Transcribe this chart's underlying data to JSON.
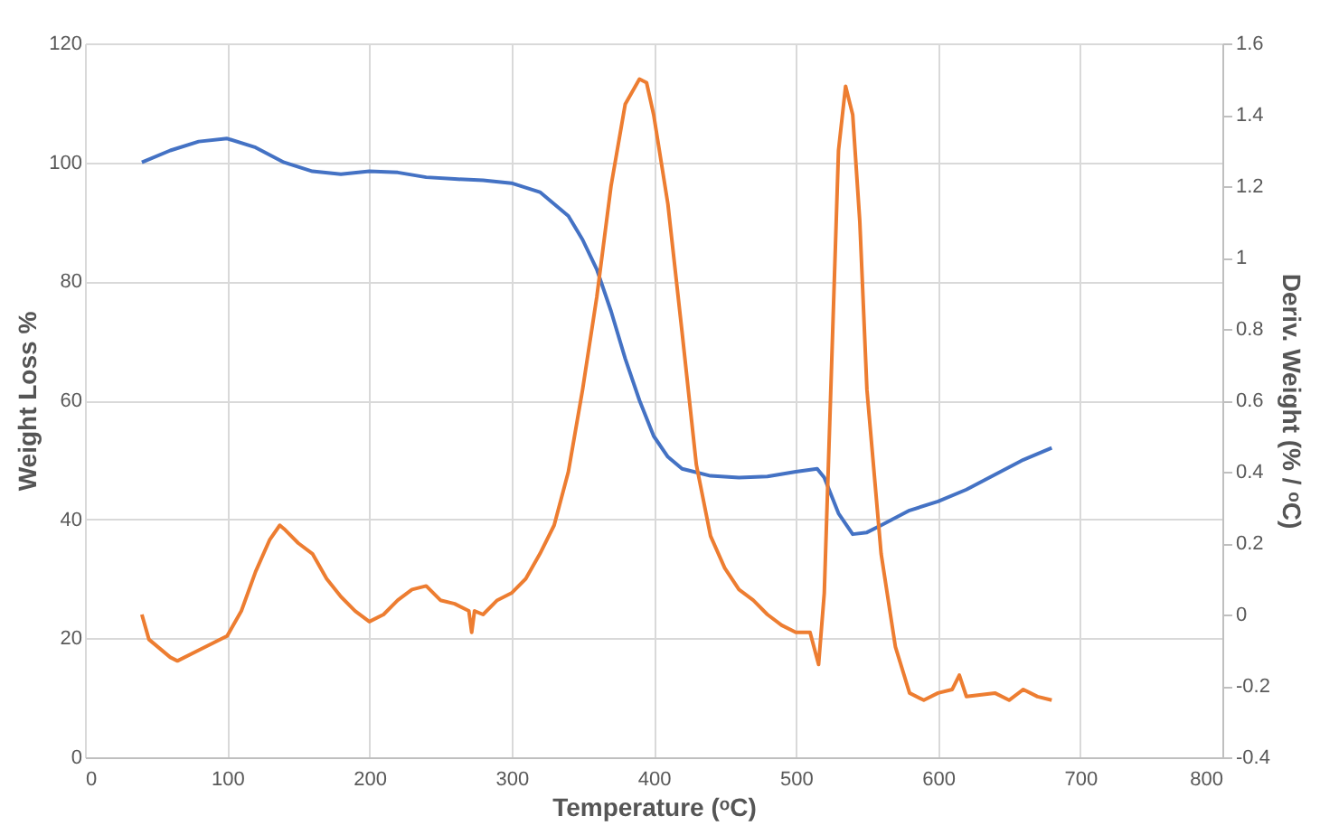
{
  "chart_data": {
    "type": "line",
    "xlabel": "Temperature (ᵒC)",
    "ylabel": "Weight Loss %",
    "y2label": "Deriv. Weight (% / ᵒC)",
    "xlim": [
      0,
      800
    ],
    "xticks": [
      0,
      100,
      200,
      300,
      400,
      500,
      600,
      700,
      800
    ],
    "ylim": [
      0,
      120
    ],
    "yticks": [
      0,
      20,
      40,
      60,
      80,
      100,
      120
    ],
    "y2lim": [
      -0.4,
      1.6
    ],
    "y2ticks": [
      -0.4,
      -0.2,
      0,
      0.2,
      0.4,
      0.6,
      0.8,
      1,
      1.2,
      1.4,
      1.6
    ],
    "grid": true,
    "marker": "none",
    "line_style": "solid",
    "series": [
      {
        "color": "#4472c4",
        "x": [
          40,
          60,
          80,
          100,
          120,
          140,
          160,
          180,
          200,
          220,
          240,
          260,
          280,
          300,
          320,
          340,
          350,
          360,
          370,
          380,
          390,
          400,
          410,
          420,
          440,
          460,
          480,
          500,
          515,
          520,
          530,
          540,
          550,
          560,
          580,
          600,
          620,
          640,
          660,
          680
        ],
        "values": [
          100,
          102,
          103.5,
          104,
          102.5,
          100,
          98.5,
          98,
          98.5,
          98.3,
          97.5,
          97.2,
          97,
          96.5,
          95,
          91,
          87,
          82,
          75,
          67,
          60,
          54,
          50.5,
          48.5,
          47.3,
          47,
          47.2,
          48,
          48.5,
          47,
          41,
          37.5,
          37.8,
          39,
          41.5,
          43,
          45,
          47.5,
          50,
          52
        ]
      },
      {
        "color": "#ed7d31",
        "axis": "y2",
        "x": [
          40,
          45,
          60,
          65,
          80,
          100,
          110,
          120,
          130,
          137,
          140,
          150,
          160,
          170,
          180,
          190,
          200,
          210,
          220,
          230,
          240,
          250,
          260,
          270,
          272,
          274,
          280,
          290,
          300,
          310,
          320,
          330,
          340,
          350,
          360,
          370,
          380,
          390,
          395,
          400,
          410,
          420,
          430,
          440,
          450,
          460,
          470,
          480,
          490,
          500,
          510,
          516,
          520,
          525,
          530,
          535,
          540,
          545,
          550,
          560,
          570,
          580,
          590,
          600,
          610,
          615,
          620,
          640,
          650,
          660,
          670,
          680
        ],
        "values": [
          0.0,
          -0.07,
          -0.12,
          -0.13,
          -0.1,
          -0.06,
          0.01,
          0.12,
          0.21,
          0.25,
          0.24,
          0.2,
          0.17,
          0.1,
          0.05,
          0.01,
          -0.02,
          0,
          0.04,
          0.07,
          0.08,
          0.04,
          0.03,
          0.01,
          -0.05,
          0.01,
          0,
          0.04,
          0.06,
          0.1,
          0.17,
          0.25,
          0.4,
          0.63,
          0.89,
          1.2,
          1.43,
          1.5,
          1.49,
          1.4,
          1.15,
          0.79,
          0.42,
          0.22,
          0.13,
          0.07,
          0.04,
          0,
          -0.03,
          -0.05,
          -0.05,
          -0.14,
          0.06,
          0.68,
          1.3,
          1.48,
          1.4,
          1.1,
          0.63,
          0.17,
          -0.09,
          -0.22,
          -0.24,
          -0.22,
          -0.21,
          -0.17,
          -0.23,
          -0.22,
          -0.24,
          -0.21,
          -0.23,
          -0.24
        ]
      }
    ]
  }
}
